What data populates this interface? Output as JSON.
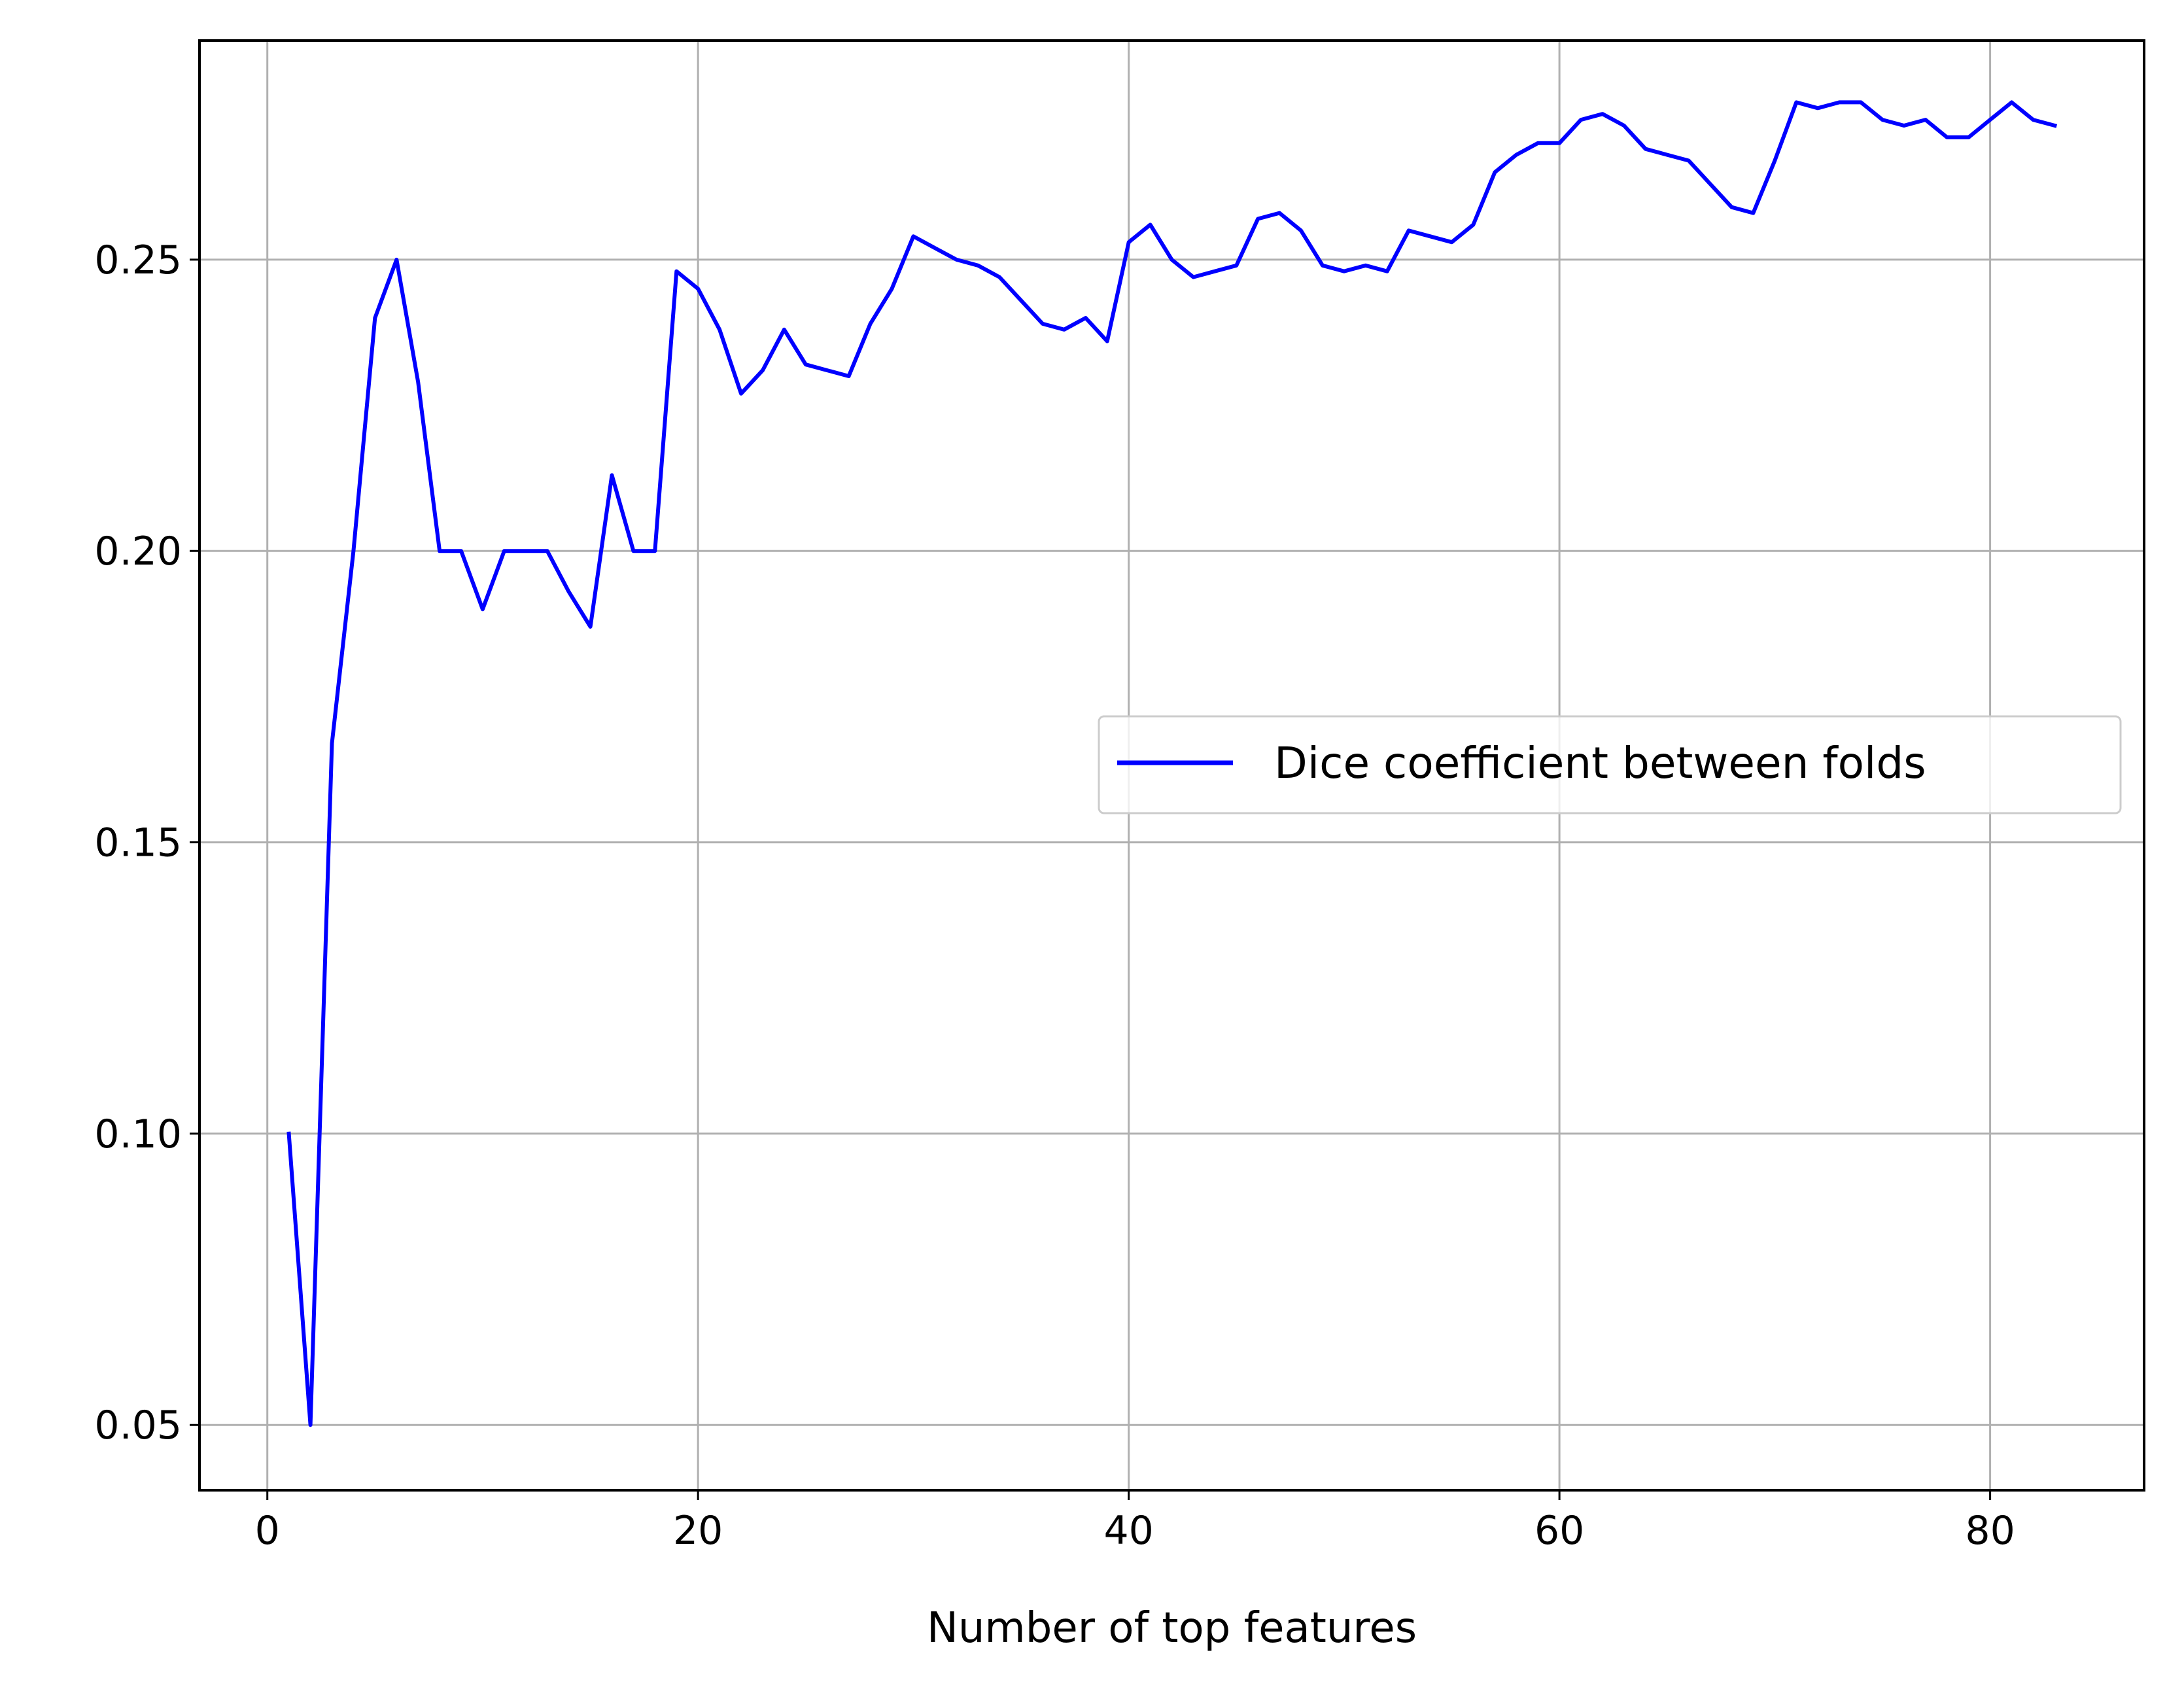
{
  "chart_data": {
    "type": "line",
    "title": "",
    "xlabel": "Number of top features",
    "ylabel": "",
    "xlim": [
      -3.15,
      87.15
    ],
    "ylim": [
      0.0388,
      0.2876
    ],
    "grid": true,
    "legend_position": "center-right",
    "x_ticks": [
      {
        "value": 0,
        "label": "0"
      },
      {
        "value": 20,
        "label": "20"
      },
      {
        "value": 40,
        "label": "40"
      },
      {
        "value": 60,
        "label": "60"
      },
      {
        "value": 80,
        "label": "80"
      }
    ],
    "y_ticks": [
      {
        "value": 0.05,
        "label": "0.05"
      },
      {
        "value": 0.1,
        "label": "0.10"
      },
      {
        "value": 0.15,
        "label": "0.15"
      },
      {
        "value": 0.2,
        "label": "0.20"
      },
      {
        "value": 0.25,
        "label": "0.25"
      }
    ],
    "colors": {
      "line": "#0000ff",
      "grid": "#b0b0b0",
      "axes": "#000000"
    },
    "series": [
      {
        "name": "Dice coefficient between folds",
        "x": [
          1,
          2,
          3,
          4,
          5,
          6,
          7,
          8,
          9,
          10,
          11,
          12,
          13,
          14,
          15,
          16,
          17,
          18,
          19,
          20,
          21,
          22,
          23,
          24,
          25,
          26,
          27,
          28,
          29,
          30,
          31,
          32,
          33,
          34,
          35,
          36,
          37,
          38,
          39,
          40,
          41,
          42,
          43,
          44,
          45,
          46,
          47,
          48,
          49,
          50,
          51,
          52,
          53,
          54,
          55,
          56,
          57,
          58,
          59,
          60,
          61,
          62,
          63,
          64,
          65,
          66,
          67,
          68,
          69,
          70,
          71,
          72,
          73,
          74,
          75,
          76,
          77,
          78,
          79,
          80,
          81,
          82,
          83
        ],
        "values": [
          0.1,
          0.05,
          0.167,
          0.2,
          0.24,
          0.25,
          0.229,
          0.2,
          0.2,
          0.19,
          0.2,
          0.2,
          0.2,
          0.193,
          0.187,
          0.213,
          0.2,
          0.2,
          0.248,
          0.245,
          0.238,
          0.227,
          0.231,
          0.238,
          0.232,
          0.231,
          0.23,
          0.239,
          0.245,
          0.254,
          0.252,
          0.25,
          0.249,
          0.247,
          0.243,
          0.239,
          0.238,
          0.24,
          0.236,
          0.253,
          0.256,
          0.25,
          0.247,
          0.248,
          0.249,
          0.257,
          0.258,
          0.255,
          0.249,
          0.248,
          0.249,
          0.248,
          0.255,
          0.254,
          0.253,
          0.256,
          0.265,
          0.268,
          0.27,
          0.27,
          0.274,
          0.275,
          0.273,
          0.269,
          0.268,
          0.267,
          0.263,
          0.259,
          0.258,
          0.267,
          0.277,
          0.276,
          0.277,
          0.277,
          0.274,
          0.273,
          0.274,
          0.271,
          0.271,
          0.274,
          0.277,
          0.274,
          0.273
        ]
      }
    ]
  }
}
